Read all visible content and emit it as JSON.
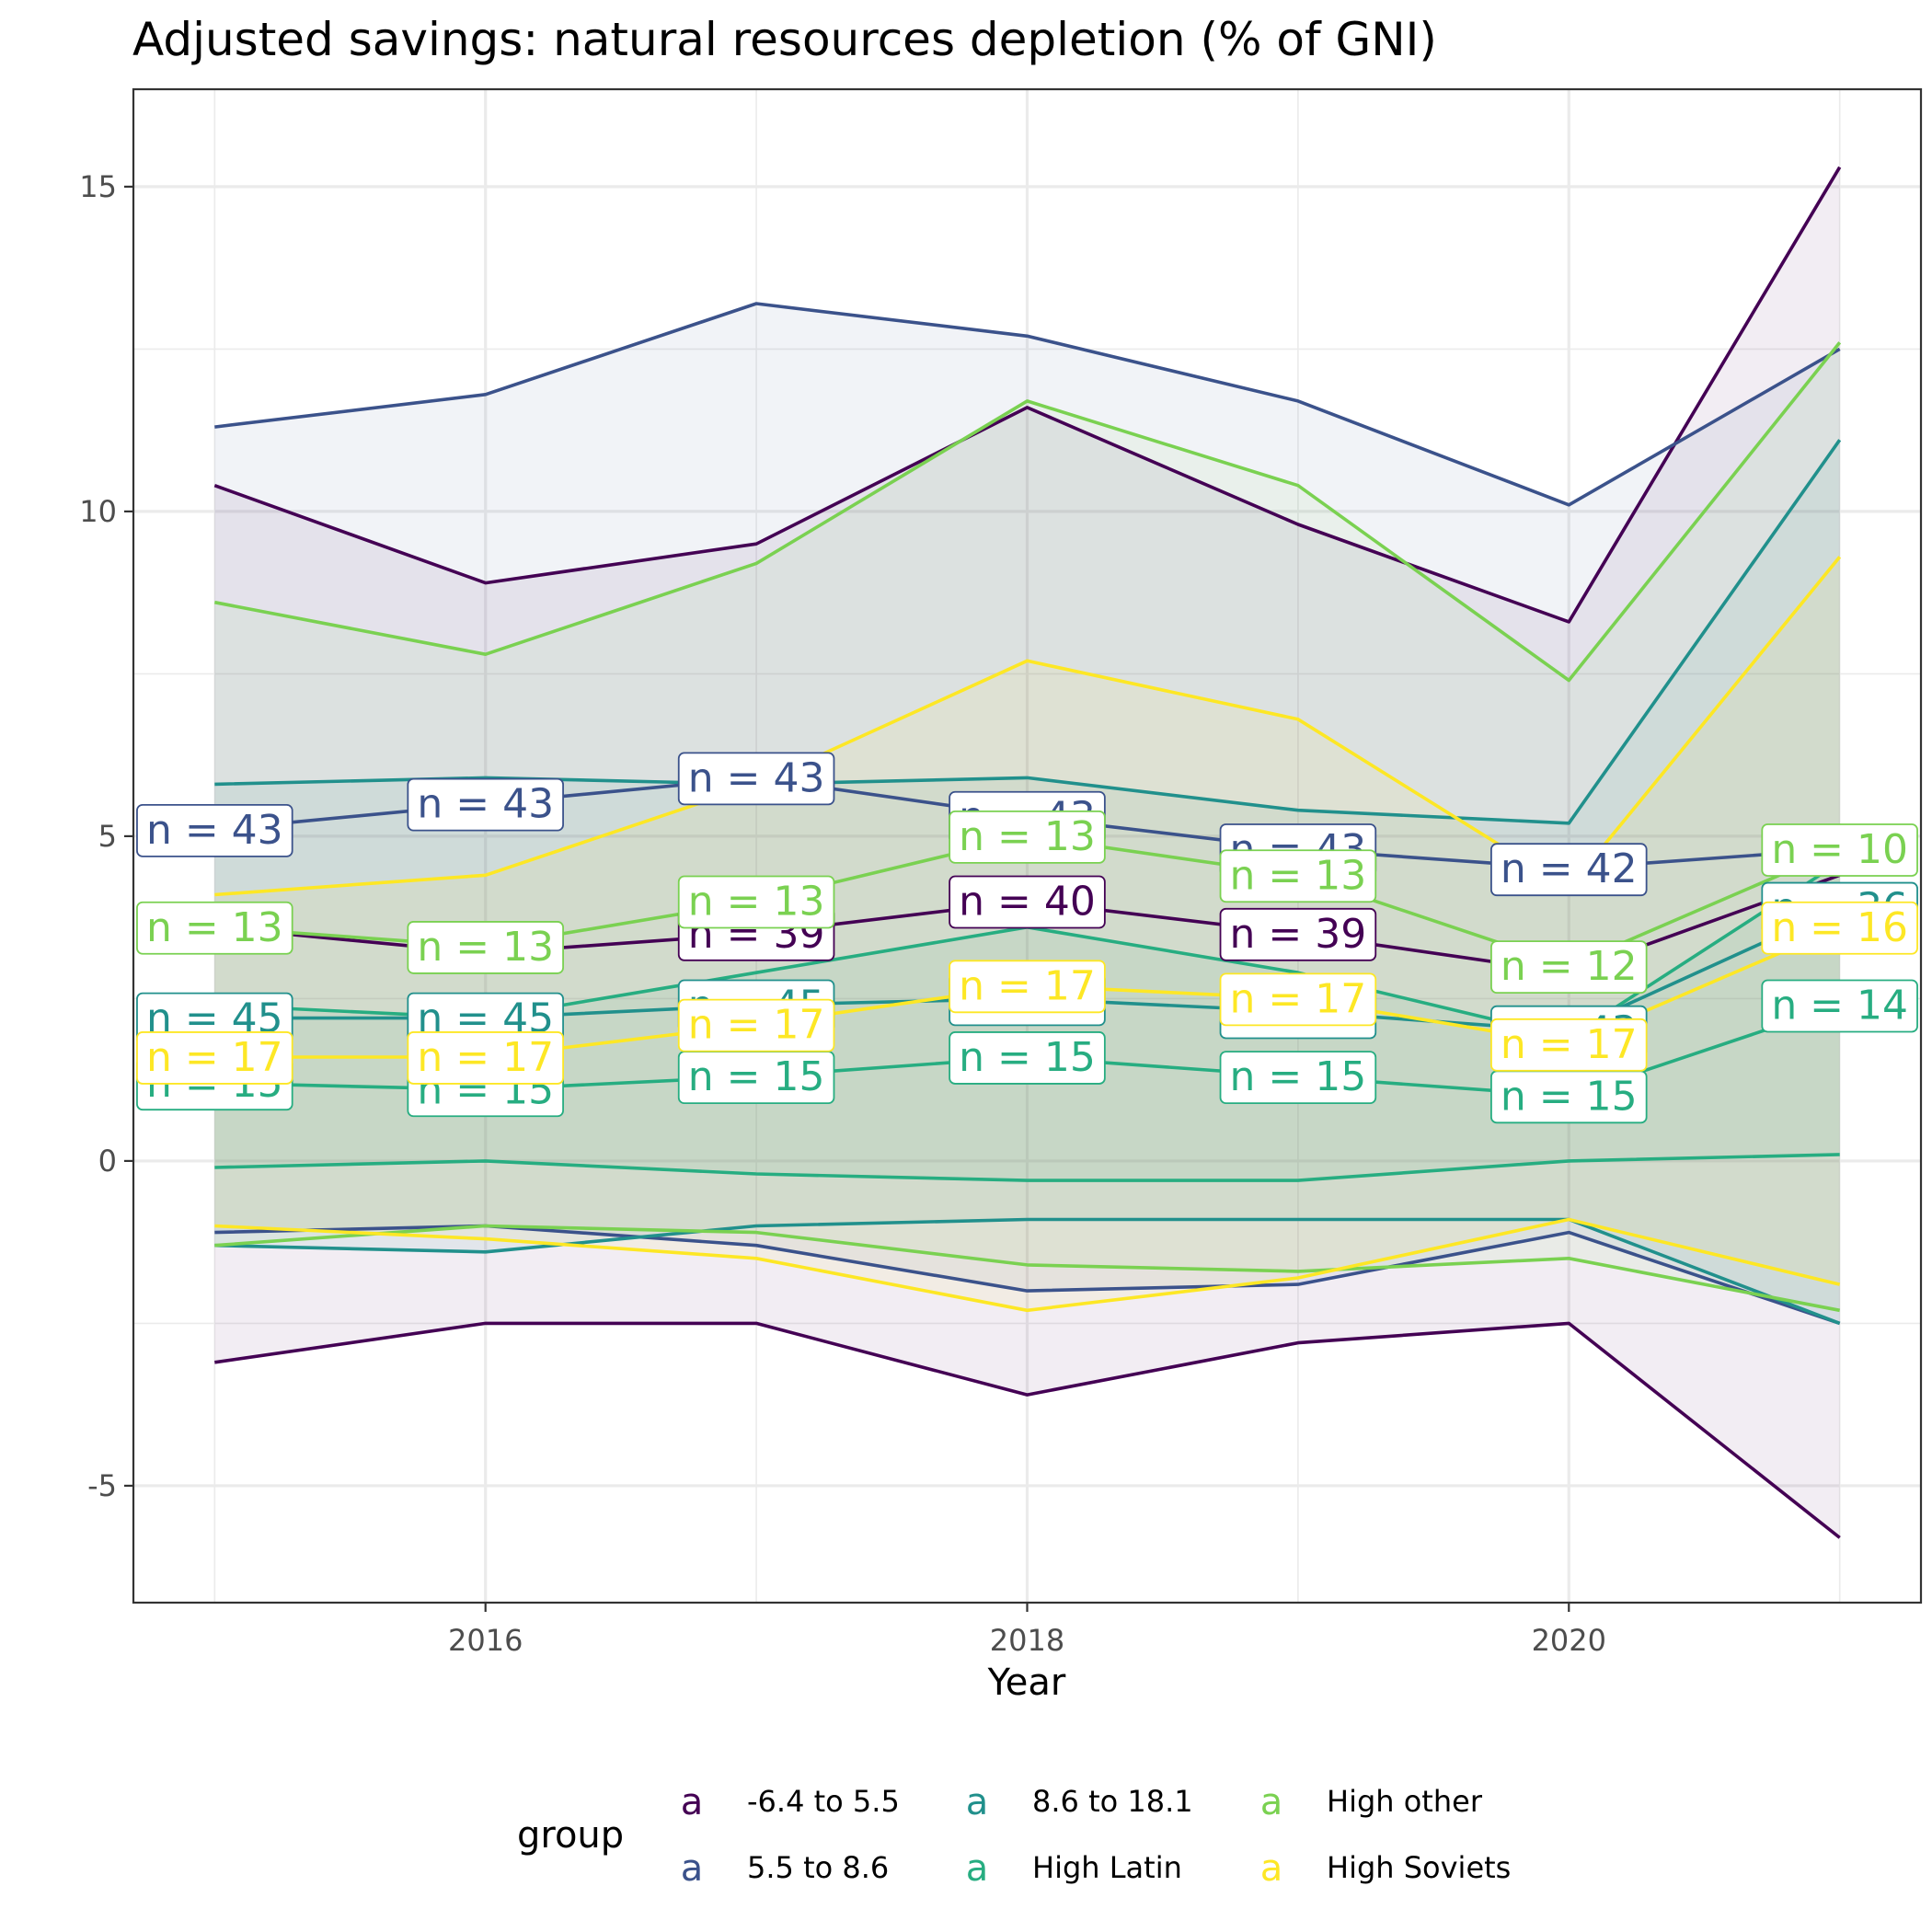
{
  "chart_data": {
    "type": "line",
    "title": "Adjusted savings: natural resources depletion (% of GNI)",
    "xlabel": "Year",
    "ylabel": "",
    "x": [
      2015,
      2016,
      2017,
      2018,
      2019,
      2020,
      2021
    ],
    "x_ticks": [
      2016,
      2018,
      2020
    ],
    "xlim": [
      2014.7,
      2021.3
    ],
    "ylim": [
      -6.8,
      16.5
    ],
    "y_ticks": [
      -5,
      0,
      5,
      10,
      15
    ],
    "y_tick_labels": [
      "-5",
      "0",
      "5",
      "10",
      "15"
    ],
    "grid": true,
    "legend": {
      "title": "group",
      "position": "bottom",
      "key_glyph": "a"
    },
    "series": [
      {
        "name": "-6.4 to 5.5",
        "color": "#440154",
        "mean": [
          3.6,
          3.2,
          3.5,
          4.0,
          3.5,
          2.9,
          4.4
        ],
        "upper": [
          10.4,
          8.9,
          9.5,
          11.6,
          9.8,
          8.3,
          15.3
        ],
        "lower": [
          -3.1,
          -2.5,
          -2.5,
          -3.6,
          -2.8,
          -2.5,
          -5.8
        ],
        "n": [
          null,
          null,
          39,
          40,
          39,
          null,
          null
        ],
        "fill_alpha": 0.07
      },
      {
        "name": "5.5 to 8.6",
        "color": "#3B528B",
        "mean": [
          5.1,
          5.5,
          5.9,
          5.3,
          4.8,
          4.5,
          4.8
        ],
        "upper": [
          11.3,
          11.8,
          13.2,
          12.7,
          11.7,
          10.1,
          12.5
        ],
        "lower": [
          -1.1,
          -1.0,
          -1.3,
          -2.0,
          -1.9,
          -1.1,
          -2.5
        ],
        "n": [
          43,
          43,
          43,
          43,
          43,
          42,
          null
        ],
        "fill_alpha": 0.07
      },
      {
        "name": "8.6 to 18.1",
        "color": "#21908C",
        "mean": [
          2.2,
          2.2,
          2.4,
          2.5,
          2.3,
          2.0,
          3.9
        ],
        "upper": [
          5.8,
          5.9,
          5.8,
          5.9,
          5.4,
          5.2,
          11.1
        ],
        "lower": [
          -1.3,
          -1.4,
          -1.0,
          -0.9,
          -0.9,
          -0.9,
          -2.5
        ],
        "n": [
          45,
          45,
          45,
          43,
          43,
          43,
          36
        ],
        "fill_alpha": 0.07
      },
      {
        "name": "High Latin",
        "color": "#27AD81",
        "mean": [
          1.2,
          1.1,
          1.3,
          1.6,
          1.3,
          1.0,
          2.4
        ],
        "upper": [
          2.4,
          2.2,
          2.9,
          3.6,
          2.9,
          1.9,
          4.6
        ],
        "lower": [
          -0.1,
          0.0,
          -0.2,
          -0.3,
          -0.3,
          0.0,
          0.1
        ],
        "n": [
          15,
          15,
          15,
          15,
          15,
          15,
          14
        ],
        "fill_alpha": 0.07
      },
      {
        "name": "High other",
        "color": "#7AD151",
        "mean": [
          3.6,
          3.3,
          4.0,
          5.0,
          4.4,
          3.0,
          4.8
        ],
        "upper": [
          8.6,
          7.8,
          9.2,
          11.7,
          10.4,
          7.4,
          12.6
        ],
        "lower": [
          -1.3,
          -1.0,
          -1.1,
          -1.6,
          -1.7,
          -1.5,
          -2.3
        ],
        "n": [
          13,
          13,
          13,
          13,
          13,
          12,
          10
        ],
        "fill_alpha": 0.07
      },
      {
        "name": "High Soviets",
        "color": "#FDE725",
        "mean": [
          1.6,
          1.6,
          2.1,
          2.7,
          2.5,
          1.8,
          3.6
        ],
        "upper": [
          4.1,
          4.4,
          5.8,
          7.7,
          6.8,
          4.2,
          9.3
        ],
        "lower": [
          -1.0,
          -1.2,
          -1.5,
          -2.3,
          -1.8,
          -0.9,
          -1.9
        ],
        "n": [
          17,
          17,
          17,
          17,
          17,
          17,
          16
        ],
        "fill_alpha": 0.07
      }
    ]
  }
}
